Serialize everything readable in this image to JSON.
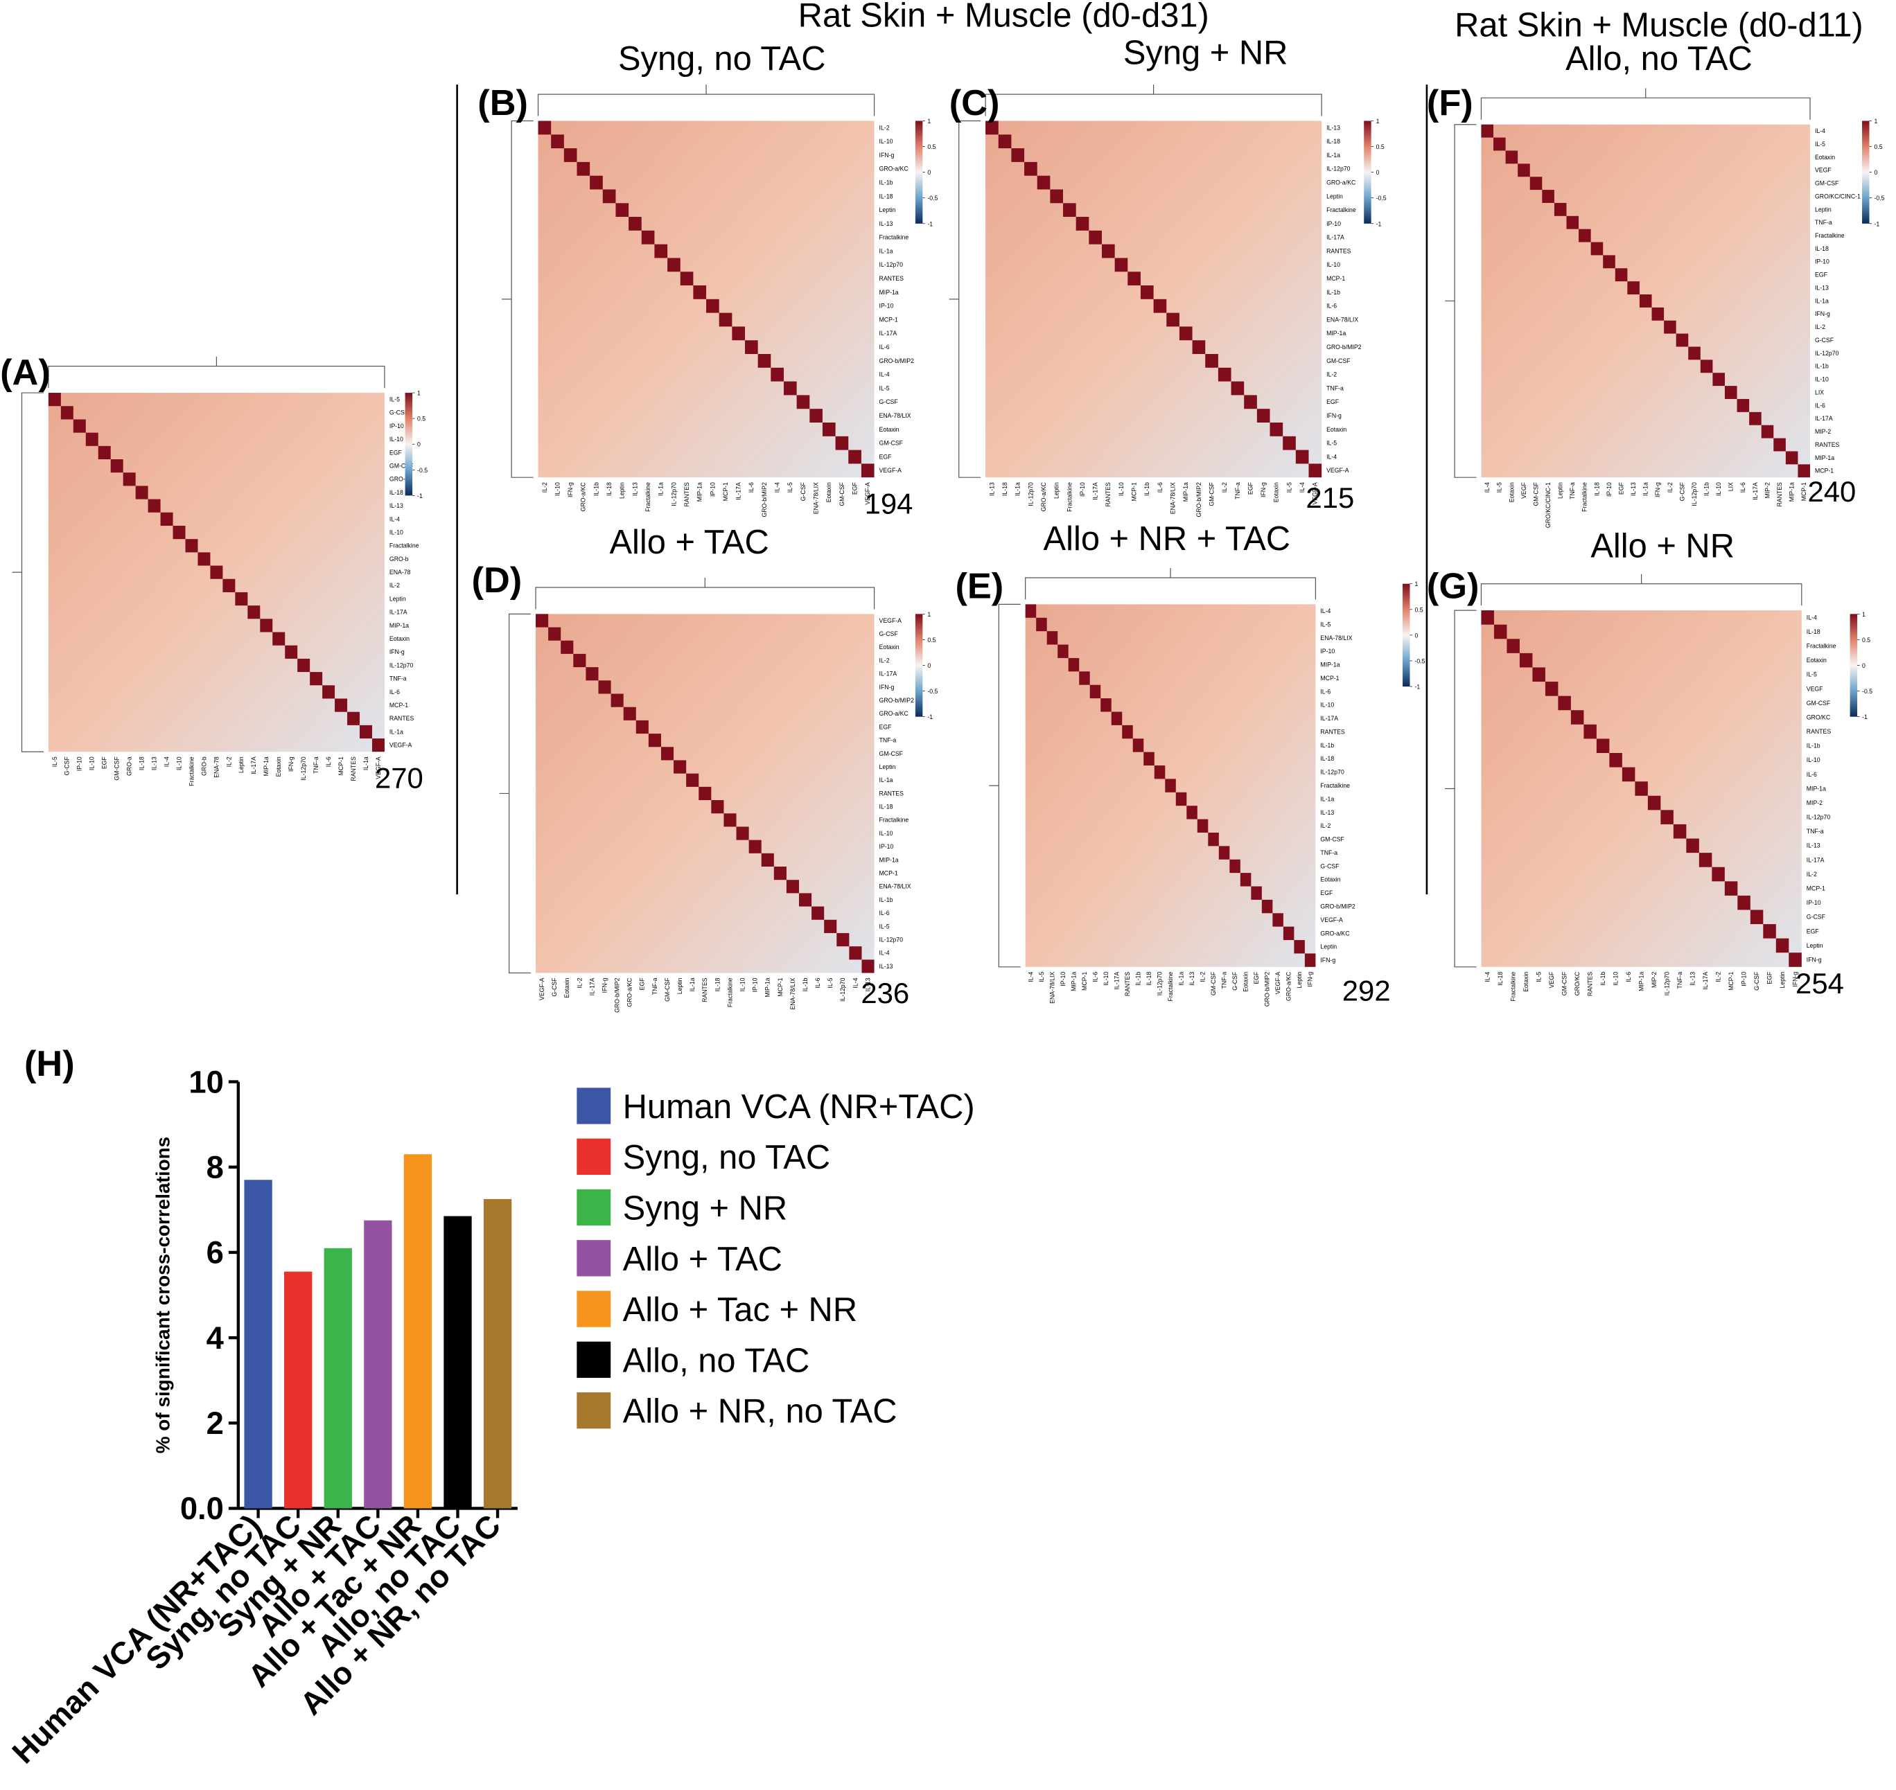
{
  "header": {
    "left_title": "Rat Skin + Muscle (d0-d31)",
    "right_title": "Rat Skin + Muscle (d0-d11)"
  },
  "colorbar_ticks": [
    1,
    0.5,
    0,
    -0.5,
    -1
  ],
  "heatmaps": [
    {
      "letter": "(A)",
      "count": 270,
      "labels": [
        "IL-5",
        "G-CSF",
        "IP-10",
        "IL-10",
        "EGF",
        "GM-CSF",
        "GRO-a",
        "IL-18",
        "IL-13",
        "IL-4",
        "IL-10",
        "Fractalkine",
        "GRO-b",
        "ENA-78",
        "IL-2",
        "Leptin",
        "IL-17A",
        "MIP-1a",
        "Eotaxin",
        "IFN-g",
        "IL-12p70",
        "TNF-a",
        "IL-6",
        "MCP-1",
        "RANTES",
        "IL-1a",
        "VEGF-A"
      ]
    },
    {
      "letter": "(B)",
      "title": "Syng, no TAC",
      "count": 194,
      "labels": [
        "IL-2",
        "IL-10",
        "IFN-g",
        "GRO-a/KC",
        "IL-1b",
        "IL-18",
        "Leptin",
        "IL-13",
        "Fractalkine",
        "IL-1a",
        "IL-12p70",
        "RANTES",
        "MIP-1a",
        "IP-10",
        "MCP-1",
        "IL-17A",
        "IL-6",
        "GRO-b/MIP2",
        "IL-4",
        "IL-5",
        "G-CSF",
        "ENA-78/LIX",
        "Eotaxin",
        "GM-CSF",
        "EGF",
        "VEGF-A"
      ]
    },
    {
      "letter": "(C)",
      "title": "Syng + NR",
      "count": 215,
      "labels": [
        "IL-13",
        "IL-18",
        "IL-1a",
        "IL-12p70",
        "GRO-a/KC",
        "Leptin",
        "Fractalkine",
        "IP-10",
        "IL-17A",
        "RANTES",
        "IL-10",
        "MCP-1",
        "IL-1b",
        "IL-6",
        "ENA-78/LIX",
        "MIP-1a",
        "GRO-b/MIP2",
        "GM-CSF",
        "IL-2",
        "TNF-a",
        "EGF",
        "IFN-g",
        "Eotaxin",
        "IL-5",
        "IL-4",
        "VEGF-A"
      ]
    },
    {
      "letter": "(F)",
      "title": "Allo, no TAC",
      "count": 240,
      "labels": [
        "IL-4",
        "IL-5",
        "Eotaxin",
        "VEGF",
        "GM-CSF",
        "GRO/KC/CINC-1",
        "Leptin",
        "TNF-a",
        "Fractalkine",
        "IL-18",
        "IP-10",
        "EGF",
        "IL-13",
        "IL-1a",
        "IFN-g",
        "IL-2",
        "G-CSF",
        "IL-12p70",
        "IL-1b",
        "IL-10",
        "LIX",
        "IL-6",
        "IL-17A",
        "MIP-2",
        "RANTES",
        "MIP-1a",
        "MCP-1"
      ]
    },
    {
      "letter": "(D)",
      "title": "Allo + TAC",
      "count": 236,
      "labels": [
        "VEGF-A",
        "G-CSF",
        "Eotaxin",
        "IL-2",
        "IL-17A",
        "IFN-g",
        "GRO-b/MIP2",
        "GRO-a/KC",
        "EGF",
        "TNF-a",
        "GM-CSF",
        "Leptin",
        "IL-1a",
        "RANTES",
        "IL-18",
        "Fractalkine",
        "IL-10",
        "IP-10",
        "MIP-1a",
        "MCP-1",
        "ENA-78/LIX",
        "IL-1b",
        "IL-6",
        "IL-5",
        "IL-12p70",
        "IL-4",
        "IL-13"
      ]
    },
    {
      "letter": "(E)",
      "title": "Allo + NR + TAC",
      "count": 292,
      "labels": [
        "IL-4",
        "IL-5",
        "ENA-78/LIX",
        "IP-10",
        "MIP-1a",
        "MCP-1",
        "IL-6",
        "IL-10",
        "IL-17A",
        "RANTES",
        "IL-1b",
        "IL-18",
        "IL-12p70",
        "Fractalkine",
        "IL-1a",
        "IL-13",
        "IL-2",
        "GM-CSF",
        "TNF-a",
        "G-CSF",
        "Eotaxin",
        "EGF",
        "GRO-b/MIP2",
        "VEGF-A",
        "GRO-a/KC",
        "Leptin",
        "IFN-g"
      ]
    },
    {
      "letter": "(G)",
      "title": "Allo + NR",
      "count": 254,
      "labels": [
        "IL-4",
        "IL-18",
        "Fractalkine",
        "Eotaxin",
        "IL-5",
        "VEGF",
        "GM-CSF",
        "GRO/KC",
        "RANTES",
        "IL-1b",
        "IL-10",
        "IL-6",
        "MIP-1a",
        "MIP-2",
        "IL-12p70",
        "TNF-a",
        "IL-13",
        "IL-17A",
        "IL-2",
        "MCP-1",
        "IP-10",
        "G-CSF",
        "EGF",
        "Leptin",
        "IFN-g"
      ]
    }
  ],
  "chart_data": {
    "type": "bar",
    "letter": "(H)",
    "ylabel": "% of significant cross-correlations",
    "categories": [
      "Human VCA (NR+TAC)",
      "Syng, no TAC",
      "Syng + NR",
      "Allo + TAC",
      "Allo + Tac + NR",
      "Allo, no TAC",
      "Allo + NR, no TAC"
    ],
    "values": [
      7.7,
      5.55,
      6.1,
      6.75,
      8.3,
      6.85,
      7.25
    ],
    "colors": [
      "#3b56a5",
      "#e8322b",
      "#3bb54a",
      "#9452a0",
      "#f7941d",
      "#000000",
      "#a6782e"
    ],
    "ylim": [
      0,
      10
    ],
    "yticks": [
      {
        "value": 0,
        "label": "0.0"
      },
      2,
      4,
      6,
      8,
      10
    ],
    "legend": "right"
  }
}
